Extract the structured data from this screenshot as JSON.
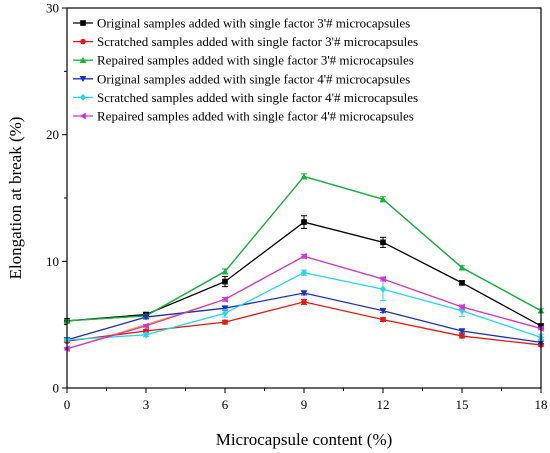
{
  "chart_data": {
    "type": "line",
    "title": "",
    "xlabel": "Microcapsule content (%)",
    "ylabel": "Elongation at break (%)",
    "x": [
      0,
      3,
      6,
      9,
      12,
      15,
      18
    ],
    "xlim": [
      0,
      18
    ],
    "ylim": [
      0,
      30
    ],
    "xticks": [
      "0",
      "3",
      "6",
      "9",
      "12",
      "15",
      "18"
    ],
    "yticks": [
      "0",
      "10",
      "20",
      "30"
    ],
    "grid": false,
    "legend_position": "top-left",
    "series": [
      {
        "name": "Original samples added with single factor 3'# microcapsules",
        "color": "#000000",
        "marker": "square",
        "values": [
          5.3,
          5.8,
          8.4,
          13.1,
          11.5,
          8.3,
          4.9
        ],
        "errors": [
          0.1,
          0.15,
          0.4,
          0.5,
          0.4,
          0.15,
          0.15
        ]
      },
      {
        "name": "Scratched samples added with single factor 3'# microcapsules",
        "color": "#e8170f",
        "marker": "circle",
        "values": [
          3.7,
          4.5,
          5.2,
          6.8,
          5.4,
          4.1,
          3.4
        ],
        "errors": [
          0.1,
          0.1,
          0.15,
          0.2,
          0.15,
          0.15,
          0.1
        ]
      },
      {
        "name": "Repaired samples added with single factor 3'# microcapsules",
        "color": "#19b23b",
        "marker": "triangle-up",
        "values": [
          5.3,
          5.7,
          9.2,
          16.7,
          14.9,
          9.5,
          6.1
        ],
        "errors": [
          0.1,
          0.1,
          0.2,
          0.2,
          0.2,
          0.15,
          0.15
        ]
      },
      {
        "name": "Original samples added with single factor 4'# microcapsules",
        "color": "#1c31c4",
        "marker": "triangle-down",
        "values": [
          3.8,
          5.6,
          6.3,
          7.5,
          6.1,
          4.5,
          3.6
        ],
        "errors": [
          0.1,
          0.15,
          0.15,
          0.15,
          0.15,
          0.15,
          0.1
        ]
      },
      {
        "name": "Scratched samples added with single factor 4'# microcapsules",
        "color": "#27d6ed",
        "marker": "diamond",
        "values": [
          3.8,
          4.2,
          5.9,
          9.1,
          7.8,
          6.1,
          4.0
        ],
        "errors": [
          0.1,
          0.15,
          0.3,
          0.2,
          0.9,
          0.45,
          0.25
        ]
      },
      {
        "name": "Repaired samples added with single factor 4'# microcapsules",
        "color": "#d233d6",
        "marker": "triangle-left",
        "values": [
          3.1,
          4.9,
          7.0,
          10.4,
          8.6,
          6.4,
          4.7
        ],
        "errors": [
          0.1,
          0.1,
          0.15,
          0.15,
          0.15,
          0.15,
          0.1
        ]
      }
    ],
    "extra_lines": [
      {
        "name": "",
        "color": "#ebb10c",
        "marker": "none",
        "values": [
          3.1,
          5.0,
          7.0,
          10.4,
          8.6,
          6.4,
          4.7
        ]
      },
      {
        "name": "",
        "color": "#2c8c62",
        "marker": "none",
        "values": [
          5.3,
          5.7,
          9.2,
          16.7,
          14.9,
          9.5,
          6.1
        ]
      }
    ]
  }
}
